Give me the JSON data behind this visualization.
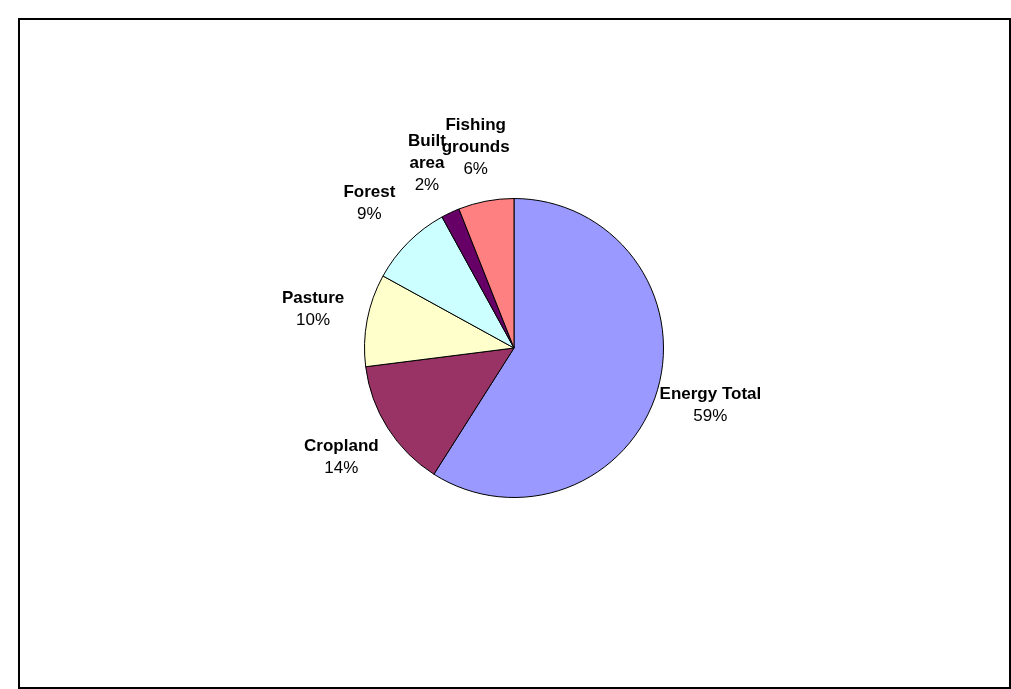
{
  "chart_data": {
    "type": "pie",
    "categories": [
      "Energy Total",
      "Cropland",
      "Pasture",
      "Forest",
      "Built area",
      "Fishing grounds"
    ],
    "values": [
      59,
      14,
      10,
      9,
      2,
      6
    ],
    "value_labels": [
      "59%",
      "14%",
      "10%",
      "9%",
      "2%",
      "6%"
    ],
    "colors": [
      "#9999ff",
      "#993366",
      "#ffffcc",
      "#ccffff",
      "#660066",
      "#ff8080"
    ],
    "legend": false
  }
}
